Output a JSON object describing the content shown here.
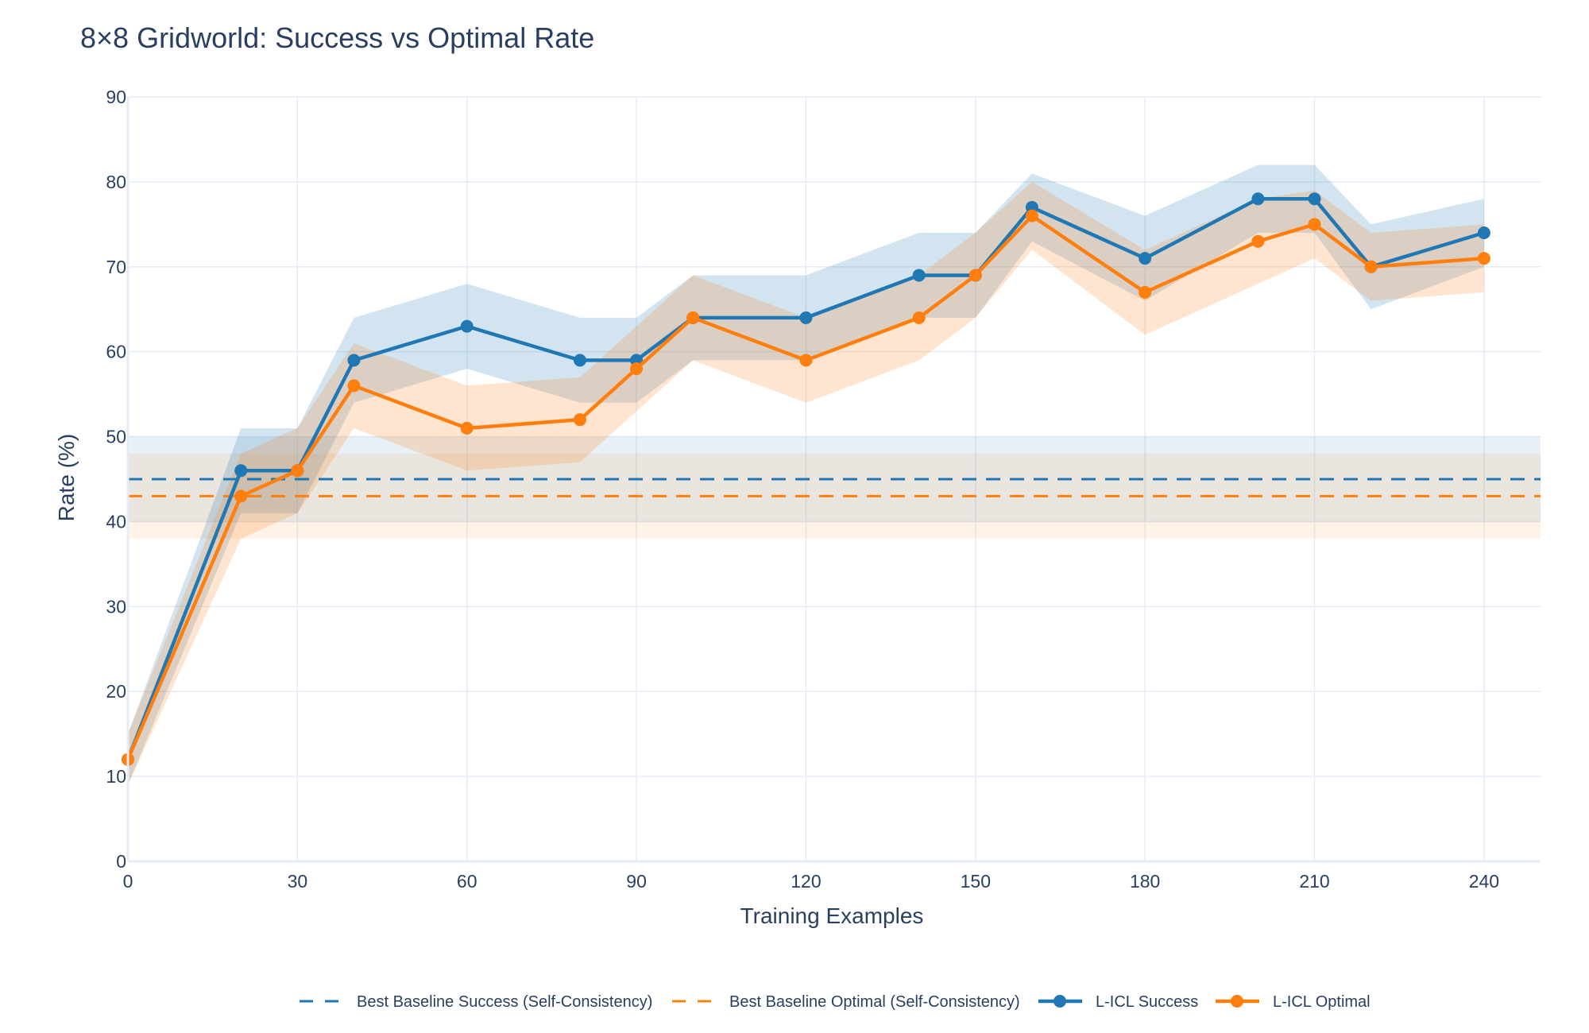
{
  "chart_data": {
    "type": "line",
    "title": "8×8 Gridworld: Success vs Optimal Rate",
    "xlabel": "Training Examples",
    "ylabel": "Rate (%)",
    "xlim": [
      0,
      250
    ],
    "ylim": [
      0,
      90
    ],
    "xticks": [
      0,
      30,
      60,
      90,
      120,
      150,
      180,
      210,
      240
    ],
    "yticks": [
      0,
      10,
      20,
      30,
      40,
      50,
      60,
      70,
      80,
      90
    ],
    "grid": true,
    "legend_position": "bottom-center",
    "x": [
      0,
      20,
      30,
      40,
      60,
      80,
      90,
      100,
      120,
      140,
      150,
      160,
      180,
      200,
      210,
      220,
      240
    ],
    "series": [
      {
        "name": "L-ICL Success",
        "color": "#1f77b4",
        "values": [
          12,
          46,
          46,
          59,
          63,
          59,
          59,
          64,
          64,
          69,
          69,
          77,
          71,
          78,
          78,
          70,
          74
        ],
        "band_upper": [
          15,
          51,
          51,
          64,
          68,
          64,
          64,
          69,
          69,
          74,
          74,
          81,
          76,
          82,
          82,
          75,
          78
        ],
        "band_lower": [
          9,
          41,
          41,
          54,
          58,
          54,
          54,
          59,
          59,
          64,
          64,
          73,
          66,
          74,
          74,
          65,
          70
        ]
      },
      {
        "name": "L-ICL Optimal",
        "color": "#ff7f0e",
        "values": [
          12,
          43,
          46,
          56,
          51,
          52,
          58,
          64,
          59,
          64,
          69,
          76,
          67,
          73,
          75,
          70,
          71
        ],
        "band_upper": [
          15,
          48,
          51,
          61,
          56,
          57,
          63,
          69,
          64,
          69,
          74,
          80,
          72,
          78,
          79,
          74,
          75
        ],
        "band_lower": [
          9,
          38,
          41,
          51,
          46,
          47,
          53,
          59,
          54,
          59,
          64,
          72,
          62,
          68,
          71,
          66,
          67
        ]
      }
    ],
    "reference_lines": [
      {
        "name": "Best Baseline Success (Self-Consistency)",
        "color": "#1f77b4",
        "value": 45,
        "band": [
          40,
          50
        ]
      },
      {
        "name": "Best Baseline Optimal (Self-Consistency)",
        "color": "#ff7f0e",
        "value": 43,
        "band": [
          38,
          48
        ]
      }
    ]
  }
}
